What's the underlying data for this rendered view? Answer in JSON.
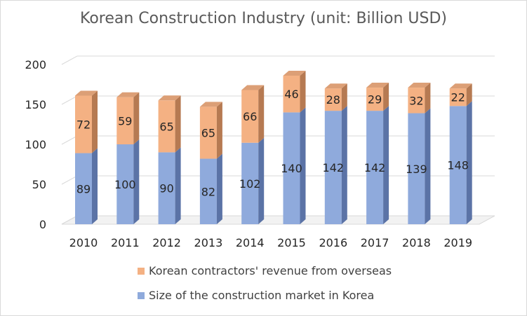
{
  "chart_data": {
    "type": "bar",
    "stacked": true,
    "title": "Korean Construction Industry (unit: Billion USD)",
    "categories": [
      "2010",
      "2011",
      "2012",
      "2013",
      "2014",
      "2015",
      "2016",
      "2017",
      "2018",
      "2019"
    ],
    "series": [
      {
        "name": "Size of the construction market in Korea",
        "values": [
          89,
          100,
          90,
          82,
          102,
          140,
          142,
          142,
          139,
          148
        ],
        "color": "#8faadc",
        "side_color": "#5b73a6"
      },
      {
        "name": "Korean contractors' revenue from overseas",
        "values": [
          72,
          59,
          65,
          65,
          66,
          46,
          28,
          29,
          32,
          22
        ],
        "color": "#f4b183",
        "side_color": "#b67a52"
      }
    ],
    "ylim": [
      0,
      200
    ],
    "yticks": [
      "0",
      "50",
      "100",
      "150",
      "200"
    ],
    "grid": true,
    "legend": "bottom"
  }
}
